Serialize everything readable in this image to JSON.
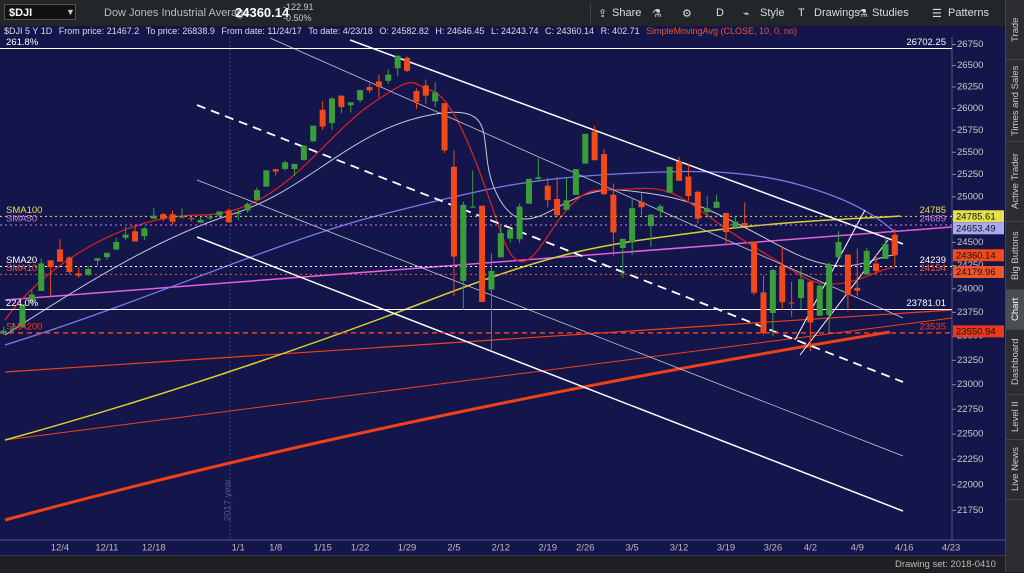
{
  "toolbar": {
    "symbol": "$DJI",
    "name": "Dow Jones Industrial Average",
    "last": "24360.14",
    "change": "-122.91",
    "change_pct": "-0.50%",
    "buttons": [
      "Share",
      "D",
      "Style",
      "Drawings",
      "Studies",
      "Patterns"
    ]
  },
  "info_bar": [
    "$DJI 5 Y 1D",
    "From price: 21467.2",
    "To price: 26838.9",
    "From date: 11/24/17",
    "To date: 4/23/18",
    "O: 24582.82",
    "H: 24646.45",
    "L: 24243.74",
    "C: 24360.14",
    "R: 402.71",
    "SimpleMovingAvg (CLOSE, 10, 0, no)"
  ],
  "sidebar_tabs": [
    "Trade",
    "Times and Sales",
    "Active Trader",
    "Big Buttons",
    "Chart",
    "Dashboard",
    "Level II",
    "Live News"
  ],
  "status_bar": "Drawing set: 2018-0410",
  "chart_data": {
    "type": "candlestick",
    "log_scale": true,
    "grid": false,
    "up_color": "#3a9d3a",
    "down_color": "#f04a1a",
    "annotation": "2017 year",
    "categories": [
      null,
      null,
      null,
      null,
      null,
      null,
      "12/4",
      null,
      null,
      null,
      null,
      "12/11",
      null,
      null,
      null,
      null,
      "12/18",
      null,
      null,
      null,
      null,
      null,
      null,
      null,
      null,
      "1/1",
      null,
      null,
      null,
      "1/8",
      null,
      null,
      null,
      null,
      "1/15",
      null,
      null,
      null,
      "1/22",
      null,
      null,
      null,
      null,
      "1/29",
      null,
      null,
      null,
      null,
      "2/5",
      null,
      null,
      null,
      null,
      "2/12",
      null,
      null,
      null,
      null,
      "2/19",
      null,
      null,
      null,
      "2/26",
      null,
      null,
      null,
      null,
      "3/5",
      null,
      null,
      null,
      null,
      "3/12",
      null,
      null,
      null,
      null,
      "3/19",
      null,
      null,
      null,
      null,
      "3/26",
      null,
      null,
      null,
      "4/2",
      null,
      null,
      null,
      null,
      "4/9",
      null,
      null,
      null,
      null,
      "4/16",
      null,
      null,
      null,
      null,
      "4/23"
    ],
    "candles": [
      [
        23531,
        23602,
        23513,
        23558
      ],
      [
        23569,
        23638,
        23540,
        23580
      ],
      [
        23600,
        23837,
        23600,
        23836
      ],
      [
        23864,
        23990,
        23833,
        23940
      ],
      [
        23977,
        24327,
        23977,
        24272
      ],
      [
        24305,
        24305,
        23921,
        24231
      ],
      [
        24424,
        24534,
        24288,
        24290
      ],
      [
        24335,
        24349,
        24155,
        24180
      ],
      [
        24165,
        24229,
        24119,
        24140
      ],
      [
        24149,
        24245,
        24135,
        24212
      ],
      [
        24301,
        24330,
        24249,
        24329
      ],
      [
        24340,
        24387,
        24312,
        24387
      ],
      [
        24421,
        24552,
        24421,
        24504
      ],
      [
        24549,
        24668,
        24521,
        24585
      ],
      [
        24621,
        24672,
        24508,
        24509
      ],
      [
        24567,
        24668,
        24526,
        24652
      ],
      [
        24758,
        24876,
        24758,
        24792
      ],
      [
        24810,
        24822,
        24729,
        24755
      ],
      [
        24808,
        24850,
        24692,
        24726
      ],
      [
        24771,
        24871,
        24760,
        24782
      ],
      [
        24764,
        24784,
        24728,
        24754
      ],
      [
        24715,
        24778,
        24715,
        24746
      ],
      [
        24766,
        24799,
        24742,
        24775
      ],
      [
        24795,
        24839,
        24754,
        24838
      ],
      [
        24850,
        24872,
        24716,
        24719
      ],
      [
        24809,
        24864,
        24742,
        24824
      ],
      [
        24850,
        24941,
        24825,
        24922
      ],
      [
        24964,
        25106,
        24963,
        25075
      ],
      [
        25115,
        25299,
        25112,
        25296
      ],
      [
        25309,
        25311,
        25236,
        25283
      ],
      [
        25312,
        25404,
        25294,
        25386
      ],
      [
        25310,
        25370,
        25233,
        25369
      ],
      [
        25411,
        25580,
        25411,
        25575
      ],
      [
        25623,
        25804,
        25620,
        25803
      ],
      [
        25986,
        26086,
        25754,
        25792
      ],
      [
        25832,
        26132,
        25755,
        26116
      ],
      [
        26149,
        26154,
        25947,
        26017
      ],
      [
        26038,
        26075,
        25956,
        26072
      ],
      [
        26096,
        26215,
        26070,
        26214
      ],
      [
        26249,
        26290,
        26180,
        26211
      ],
      [
        26315,
        26392,
        26128,
        26252
      ],
      [
        26322,
        26458,
        26284,
        26393
      ],
      [
        26469,
        26617,
        26377,
        26617
      ],
      [
        26591,
        26609,
        26425,
        26439
      ],
      [
        26204,
        26235,
        25993,
        26077
      ],
      [
        26268,
        26338,
        26056,
        26149
      ],
      [
        26083,
        26306,
        26014,
        26187
      ],
      [
        26062,
        26062,
        25490,
        25521
      ],
      [
        25337,
        25520,
        23923,
        24346
      ],
      [
        24085,
        24946,
        23778,
        24912
      ],
      [
        24893,
        25293,
        24877,
        24893
      ],
      [
        24902,
        24903,
        23860,
        23860
      ],
      [
        23992,
        24382,
        23360,
        24191
      ],
      [
        24337,
        24705,
        24337,
        24601
      ],
      [
        24541,
        24662,
        24496,
        24640
      ],
      [
        24535,
        24925,
        24490,
        24893
      ],
      [
        24924,
        25203,
        24924,
        25200
      ],
      [
        25200,
        25432,
        25170,
        25219
      ],
      [
        25124,
        25213,
        24884,
        24964
      ],
      [
        24977,
        25221,
        24788,
        24798
      ],
      [
        24856,
        25212,
        24856,
        24962
      ],
      [
        25022,
        25310,
        25022,
        25310
      ],
      [
        25372,
        25710,
        25372,
        25710
      ],
      [
        25735,
        25800,
        25406,
        25410
      ],
      [
        25480,
        25537,
        25028,
        25029
      ],
      [
        25024,
        25150,
        24348,
        24608
      ],
      [
        24439,
        24538,
        24117,
        24538
      ],
      [
        24500,
        24984,
        24365,
        24875
      ],
      [
        24944,
        25052,
        24800,
        24885
      ],
      [
        24678,
        24810,
        24450,
        24802
      ],
      [
        24845,
        24920,
        24769,
        24895
      ],
      [
        25046,
        25336,
        25046,
        25336
      ],
      [
        25396,
        25449,
        25178,
        25179
      ],
      [
        25227,
        25375,
        24958,
        25008
      ],
      [
        25056,
        25070,
        24709,
        24759
      ],
      [
        24831,
        25009,
        24770,
        24873
      ],
      [
        24878,
        25024,
        24878,
        24946
      ],
      [
        24822,
        24826,
        24473,
        24611
      ],
      [
        24663,
        24775,
        24646,
        24727
      ],
      [
        24712,
        24938,
        24680,
        24683
      ],
      [
        24509,
        24509,
        23931,
        23958
      ],
      [
        23962,
        24144,
        23509,
        23533
      ],
      [
        23744,
        24212,
        23498,
        24202
      ],
      [
        24249,
        24449,
        23774,
        23857
      ],
      [
        23855,
        24076,
        23705,
        23849
      ],
      [
        23902,
        24235,
        23785,
        24103
      ],
      [
        24076,
        24086,
        23345,
        23644
      ],
      [
        23715,
        24052,
        23715,
        24034
      ],
      [
        23724,
        24285,
        23532,
        24264
      ],
      [
        24338,
        24623,
        24327,
        24505
      ],
      [
        24368,
        24368,
        23759,
        23933
      ],
      [
        24010,
        24433,
        23922,
        23979
      ],
      [
        24154,
        24437,
        24154,
        24408
      ],
      [
        24271,
        24371,
        24146,
        24190
      ],
      [
        24320,
        24556,
        24320,
        24483
      ],
      [
        24582.82,
        24646.45,
        24243.74,
        24360.14
      ],
      null,
      null,
      null,
      null,
      null,
      null
    ],
    "ylim": [
      21467.2,
      26838.9
    ],
    "yticks": [
      21750,
      22000,
      22250,
      22500,
      22750,
      23000,
      23250,
      23500,
      23750,
      24000,
      24250,
      24500,
      24750,
      25000,
      25250,
      25500,
      25750,
      26000,
      26250,
      26500,
      26750
    ],
    "hlines": [
      {
        "name": "261.8%",
        "value": 26702.25,
        "color": "#ffffff",
        "style": "solid"
      },
      {
        "name": "SMA100",
        "value": 24785,
        "color": "#e8e04a",
        "style": "dotted"
      },
      {
        "name": "SMA50",
        "value": 24689,
        "color": "#d07be8",
        "style": "dotted"
      },
      {
        "name": "SMA20",
        "value": 24239,
        "color": "#ffffff",
        "style": "dotted"
      },
      {
        "name": "SMA10",
        "value": 24154,
        "color": "#f0552a",
        "style": "dotted"
      },
      {
        "name": "224.0%",
        "value": 23781.01,
        "color": "#ffffff",
        "style": "solid"
      },
      {
        "name": "SMA200",
        "value": 23535,
        "color": "#f0401a",
        "style": "dashed"
      }
    ],
    "price_markers": [
      {
        "value": 24785.61,
        "color": "#e8e04a"
      },
      {
        "value": 24653.49,
        "color": "#a9a9f0"
      },
      {
        "value": 24360.14,
        "color": "#f24a1a"
      },
      {
        "value": 24179.96,
        "color": "#f0552a"
      },
      {
        "value": 23550.94,
        "color": "#e83a1a"
      }
    ]
  }
}
